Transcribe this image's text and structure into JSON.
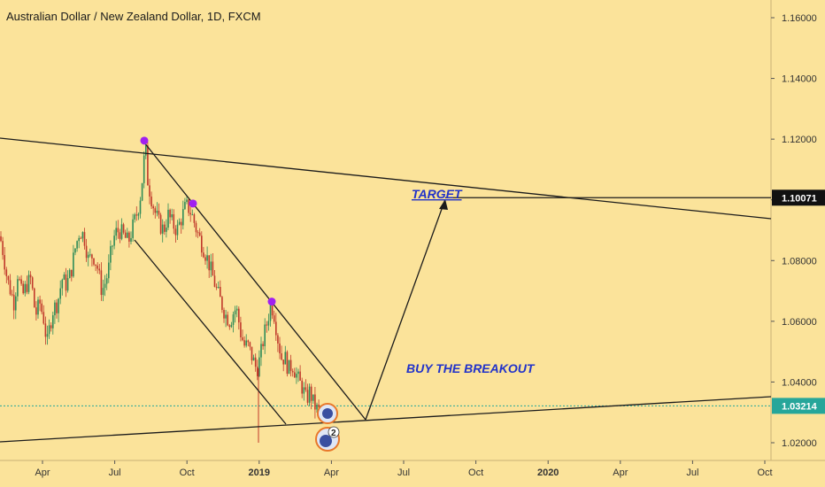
{
  "colors": {
    "background": "#fbe39a",
    "up": "#2e8b57",
    "down": "#c0392b",
    "annotation": "#2233c9",
    "pivot": "#a020f0",
    "current_line": "#26a69a",
    "target_label_bg": "#111111",
    "current_label_bg": "#26a69a"
  },
  "chart_data": {
    "type": "candlestick",
    "title": "Australian Dollar / New Zealand Dollar, 1D, FXCM",
    "x_ticks": [
      "Apr",
      "Jul",
      "Oct",
      "2019",
      "Apr",
      "Jul",
      "Oct",
      "2020",
      "Apr",
      "Jul",
      "Oct"
    ],
    "x_ticks_bold": [
      "2019",
      "2020"
    ],
    "y_ticks": [
      "1.16000",
      "1.14000",
      "1.12000",
      "1.10000",
      "1.08000",
      "1.06000",
      "1.04000",
      "1.02000"
    ],
    "ylim": [
      1.0155,
      1.1675
    ],
    "price_series": [
      [
        0,
        1.088
      ],
      [
        4,
        1.082
      ],
      [
        8,
        1.074
      ],
      [
        12,
        1.07
      ],
      [
        16,
        1.066
      ],
      [
        20,
        1.076
      ],
      [
        25,
        1.068
      ],
      [
        30,
        1.072
      ],
      [
        35,
        1.074
      ],
      [
        40,
        1.062
      ],
      [
        45,
        1.066
      ],
      [
        50,
        1.06
      ],
      [
        53,
        1.052
      ],
      [
        56,
        1.058
      ],
      [
        60,
        1.064
      ],
      [
        65,
        1.066
      ],
      [
        70,
        1.074
      ],
      [
        75,
        1.072
      ],
      [
        80,
        1.076
      ],
      [
        85,
        1.084
      ],
      [
        90,
        1.09
      ],
      [
        95,
        1.088
      ],
      [
        100,
        1.08
      ],
      [
        105,
        1.082
      ],
      [
        110,
        1.078
      ],
      [
        115,
        1.07
      ],
      [
        118,
        1.072
      ],
      [
        122,
        1.076
      ],
      [
        126,
        1.084
      ],
      [
        130,
        1.089
      ],
      [
        135,
        1.09
      ],
      [
        140,
        1.088
      ],
      [
        145,
        1.086
      ],
      [
        150,
        1.091
      ],
      [
        155,
        1.096
      ],
      [
        158,
        1.1
      ],
      [
        162,
        1.11
      ],
      [
        164,
        1.119
      ],
      [
        167,
        1.106
      ],
      [
        170,
        1.102
      ],
      [
        175,
        1.096
      ],
      [
        180,
        1.092
      ],
      [
        185,
        1.09
      ],
      [
        190,
        1.095
      ],
      [
        195,
        1.092
      ],
      [
        200,
        1.09
      ],
      [
        205,
        1.094
      ],
      [
        210,
        1.098
      ],
      [
        214,
        1.097
      ],
      [
        218,
        1.094
      ],
      [
        222,
        1.09
      ],
      [
        226,
        1.087
      ],
      [
        230,
        1.084
      ],
      [
        235,
        1.08
      ],
      [
        240,
        1.075
      ],
      [
        245,
        1.07
      ],
      [
        250,
        1.066
      ],
      [
        255,
        1.062
      ],
      [
        260,
        1.06
      ],
      [
        265,
        1.064
      ],
      [
        268,
        1.063
      ],
      [
        272,
        1.056
      ],
      [
        276,
        1.052
      ],
      [
        280,
        1.052
      ],
      [
        285,
        1.048
      ],
      [
        290,
        1.044
      ],
      [
        294,
        1.048
      ],
      [
        298,
        1.055
      ],
      [
        302,
        1.06
      ],
      [
        306,
        1.066
      ],
      [
        310,
        1.062
      ],
      [
        314,
        1.054
      ],
      [
        318,
        1.048
      ],
      [
        322,
        1.048
      ],
      [
        326,
        1.044
      ],
      [
        330,
        1.046
      ],
      [
        334,
        1.043
      ],
      [
        338,
        1.04
      ],
      [
        342,
        1.038
      ],
      [
        346,
        1.034
      ],
      [
        350,
        1.037
      ],
      [
        354,
        1.033
      ],
      [
        358,
        1.031
      ],
      [
        362,
        1.03
      ]
    ],
    "pivot_points": [
      [
        163,
        1.1195
      ],
      [
        218,
        1.0988
      ],
      [
        307,
        1.0665
      ]
    ],
    "current_price": 1.03214,
    "target_price": 1.10071,
    "price_labels": [
      "1.10071",
      "1.03214"
    ],
    "annotations": [
      "TARGET",
      "BUY THE BREAKOUT"
    ],
    "event_badge": "2",
    "grid": false
  }
}
